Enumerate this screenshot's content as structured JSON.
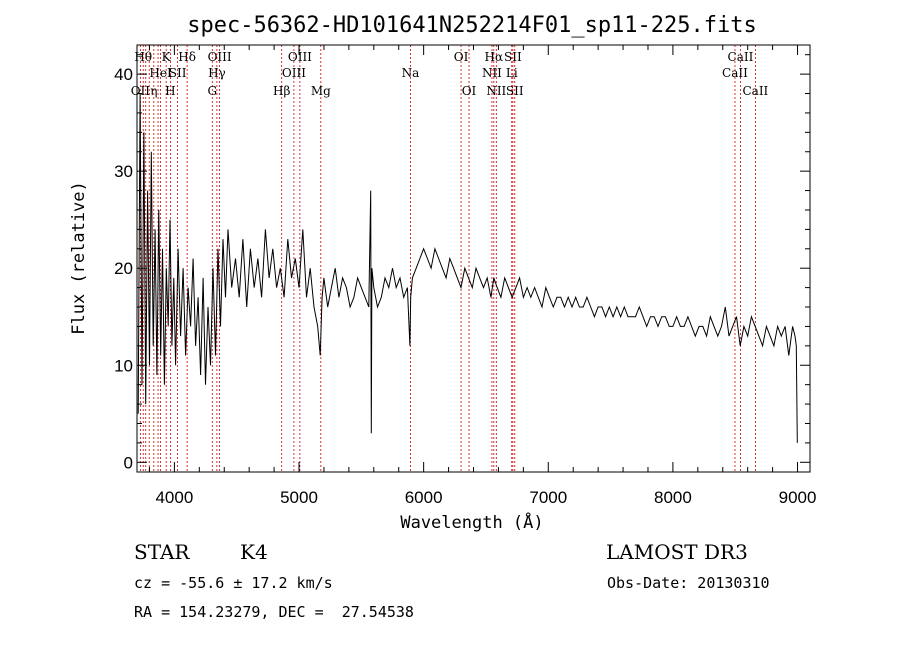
{
  "chart_data": {
    "type": "line",
    "title": "spec-56362-HD101641N252214F01_sp11-225.fits",
    "xlabel": "Wavelength (Å)",
    "ylabel": "Flux (relative)",
    "xlim": [
      3700,
      9100
    ],
    "ylim": [
      -1,
      43
    ],
    "x_ticks": [
      4000,
      5000,
      6000,
      7000,
      8000,
      9000
    ],
    "y_ticks": [
      0,
      10,
      20,
      30,
      40
    ],
    "grid": false,
    "legend": "none",
    "line_color": "#000000",
    "marker_color": "#cc0000",
    "series": [
      {
        "x": [
          3710,
          3725,
          3740,
          3755,
          3770,
          3785,
          3800,
          3815,
          3830,
          3845,
          3860,
          3875,
          3890,
          3905,
          3920,
          3935,
          3950,
          3965,
          3980,
          3995,
          4010,
          4030,
          4050,
          4070,
          4090,
          4110,
          4130,
          4150,
          4170,
          4190,
          4210,
          4230,
          4250,
          4270,
          4290,
          4310,
          4330,
          4350,
          4370,
          4390,
          4410,
          4430,
          4460,
          4490,
          4520,
          4550,
          4580,
          4610,
          4640,
          4670,
          4700,
          4730,
          4760,
          4790,
          4820,
          4850,
          4880,
          4910,
          4940,
          4970,
          5000,
          5030,
          5060,
          5090,
          5120,
          5150,
          5170,
          5185,
          5200,
          5230,
          5260,
          5290,
          5320,
          5350,
          5380,
          5410,
          5440,
          5470,
          5500,
          5530,
          5560,
          5575,
          5580,
          5585,
          5600,
          5630,
          5660,
          5690,
          5720,
          5750,
          5780,
          5810,
          5840,
          5870,
          5890,
          5896,
          5910,
          5940,
          5970,
          6000,
          6030,
          6060,
          6090,
          6120,
          6150,
          6180,
          6210,
          6240,
          6270,
          6300,
          6330,
          6360,
          6390,
          6420,
          6450,
          6480,
          6510,
          6540,
          6563,
          6590,
          6620,
          6650,
          6680,
          6710,
          6740,
          6770,
          6800,
          6830,
          6860,
          6890,
          6920,
          6950,
          6980,
          7010,
          7040,
          7070,
          7100,
          7130,
          7160,
          7190,
          7220,
          7250,
          7280,
          7310,
          7340,
          7370,
          7400,
          7430,
          7460,
          7490,
          7520,
          7550,
          7580,
          7610,
          7640,
          7670,
          7700,
          7730,
          7760,
          7790,
          7820,
          7850,
          7880,
          7910,
          7940,
          7970,
          8000,
          8030,
          8060,
          8090,
          8120,
          8150,
          8180,
          8210,
          8240,
          8270,
          8300,
          8330,
          8360,
          8390,
          8420,
          8450,
          8480,
          8510,
          8540,
          8570,
          8600,
          8630,
          8660,
          8690,
          8720,
          8750,
          8780,
          8810,
          8840,
          8870,
          8900,
          8930,
          8960,
          8980,
          8990,
          8998
        ],
        "y": [
          5,
          38,
          8,
          34,
          6,
          28,
          10,
          32,
          12,
          24,
          9,
          26,
          11,
          22,
          8,
          20,
          14,
          25,
          12,
          19,
          10,
          22,
          13,
          20,
          11,
          18,
          14,
          21,
          12,
          17,
          9,
          19,
          8,
          16,
          10,
          20,
          11,
          22,
          14,
          23,
          17,
          24,
          18,
          21,
          17,
          23,
          16,
          22,
          18,
          21,
          17,
          24,
          19,
          22,
          18,
          20,
          17,
          23,
          19,
          21,
          18,
          24,
          17,
          20,
          16,
          14,
          11,
          17,
          19,
          16,
          18,
          20,
          17,
          19,
          18,
          16,
          17,
          19,
          18,
          17,
          16,
          28,
          3,
          20,
          18,
          16,
          17,
          19,
          18,
          20,
          18,
          19,
          17,
          18,
          12,
          17,
          19,
          20,
          21,
          22,
          21,
          20,
          22,
          21,
          20,
          19,
          21,
          20,
          19,
          18,
          20,
          19,
          18,
          20,
          19,
          18,
          19,
          17,
          19,
          18,
          17,
          19,
          18,
          17,
          18,
          19,
          17,
          18,
          17,
          18,
          17,
          16,
          18,
          17,
          16,
          17,
          17,
          16,
          17,
          16,
          17,
          16,
          16,
          17,
          16,
          15,
          16,
          16,
          15,
          16,
          15,
          16,
          15,
          16,
          15,
          15,
          15,
          16,
          15,
          14,
          15,
          15,
          14,
          15,
          15,
          14,
          14,
          15,
          14,
          14,
          15,
          14,
          13,
          14,
          14,
          13,
          15,
          14,
          13,
          14,
          16,
          13,
          14,
          15,
          12,
          14,
          13,
          15,
          14,
          13,
          12,
          14,
          13,
          12,
          14,
          13,
          14,
          11,
          14,
          13,
          12,
          2
        ]
      }
    ],
    "lines": [
      {
        "wl": 3727,
        "label": "OII",
        "row": 3
      },
      {
        "wl": 3750,
        "label": "Hθ",
        "row": 1
      },
      {
        "wl": 3770,
        "label": "",
        "row": 0
      },
      {
        "wl": 3798,
        "label": "",
        "row": 0
      },
      {
        "wl": 3835,
        "label": "η",
        "row": 3
      },
      {
        "wl": 3869,
        "label": "",
        "row": 0
      },
      {
        "wl": 3889,
        "label": "HeI",
        "row": 2
      },
      {
        "wl": 3934,
        "label": "K",
        "row": 1
      },
      {
        "wl": 3968,
        "label": "H",
        "row": 3
      },
      {
        "wl": 4026,
        "label": "SII",
        "row": 2
      },
      {
        "wl": 4102,
        "label": "Hδ",
        "row": 1
      },
      {
        "wl": 4304,
        "label": "G",
        "row": 3
      },
      {
        "wl": 4341,
        "label": "Hγ",
        "row": 2
      },
      {
        "wl": 4363,
        "label": "OIII",
        "row": 1
      },
      {
        "wl": 4861,
        "label": "Hβ",
        "row": 3
      },
      {
        "wl": 4959,
        "label": "OIII",
        "row": 2
      },
      {
        "wl": 5007,
        "label": "OIII",
        "row": 1
      },
      {
        "wl": 5175,
        "label": "Mg",
        "row": 3
      },
      {
        "wl": 5894,
        "label": "Na",
        "row": 2
      },
      {
        "wl": 6300,
        "label": "OI",
        "row": 1
      },
      {
        "wl": 6364,
        "label": "OI",
        "row": 3
      },
      {
        "wl": 6548,
        "label": "NII",
        "row": 2
      },
      {
        "wl": 6563,
        "label": "Hα",
        "row": 1
      },
      {
        "wl": 6583,
        "label": "NII",
        "row": 3
      },
      {
        "wl": 6707,
        "label": "Li",
        "row": 2
      },
      {
        "wl": 6716,
        "label": "SII",
        "row": 1
      },
      {
        "wl": 6731,
        "label": "SII",
        "row": 3
      },
      {
        "wl": 8498,
        "label": "CaII",
        "row": 2
      },
      {
        "wl": 8542,
        "label": "CaII",
        "row": 1
      },
      {
        "wl": 8662,
        "label": "CaII",
        "row": 3
      }
    ]
  },
  "info": {
    "object_class": "STAR",
    "subclass": "K4",
    "survey": "LAMOST DR3",
    "cz": "cz = -55.6 ± 17.2 km/s",
    "obs_date": "Obs-Date: 20130310",
    "coords": "RA = 154.23279, DEC =  27.54538"
  }
}
